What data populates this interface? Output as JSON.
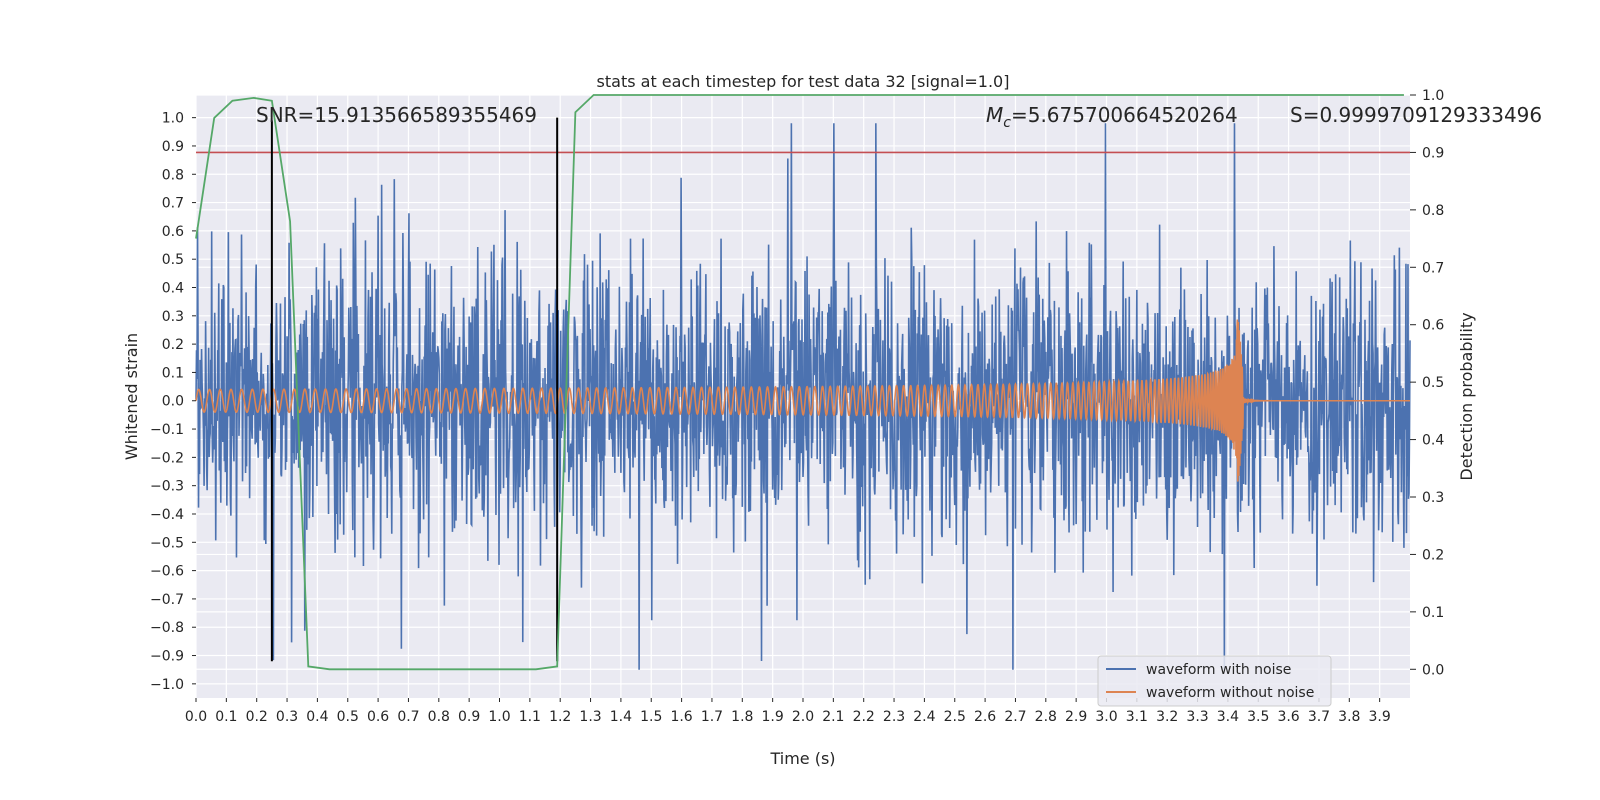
{
  "chart_data": {
    "type": "line",
    "title": "stats at each timestep for test data 32 [signal=1.0]",
    "xlabel": "Time (s)",
    "ylabel": "Whitened strain",
    "y2label": "Detection probability",
    "xlim": [
      0.0,
      4.0
    ],
    "ylim": [
      -1.05,
      1.08
    ],
    "y2lim": [
      -0.05,
      1.0
    ],
    "x_ticks": [
      "0.0",
      "0.1",
      "0.2",
      "0.3",
      "0.4",
      "0.5",
      "0.6",
      "0.7",
      "0.8",
      "0.9",
      "1.0",
      "1.1",
      "1.2",
      "1.3",
      "1.4",
      "1.5",
      "1.6",
      "1.7",
      "1.8",
      "1.9",
      "2.0",
      "2.1",
      "2.2",
      "2.3",
      "2.4",
      "2.5",
      "2.6",
      "2.7",
      "2.8",
      "2.9",
      "3.0",
      "3.1",
      "3.2",
      "3.3",
      "3.4",
      "3.5",
      "3.6",
      "3.7",
      "3.8",
      "3.9"
    ],
    "y_ticks": [
      "1.0",
      "0.9",
      "0.8",
      "0.7",
      "0.6",
      "0.5",
      "0.4",
      "0.3",
      "0.2",
      "0.1",
      "0.0",
      "−0.1",
      "−0.2",
      "−0.3",
      "−0.4",
      "−0.5",
      "−0.6",
      "−0.7",
      "−0.8",
      "−0.9",
      "−1.0"
    ],
    "y2_ticks": [
      "1.0",
      "0.9",
      "0.8",
      "0.7",
      "0.6",
      "0.5",
      "0.4",
      "0.3",
      "0.2",
      "0.1",
      "0.0"
    ],
    "annotations": {
      "snr": "SNR=15.913566589355469",
      "mc_symbol": "M",
      "mc_sub": "c",
      "mc_value": "=5.675700664520264",
      "s": "S=0.9999709129333496"
    },
    "threshold_line": {
      "axis": "y2",
      "value": 0.9,
      "color": "#c44e52"
    },
    "event_lines": [
      {
        "x": 0.25,
        "y_from": -0.92,
        "y_to": 0.99,
        "color": "#000000"
      },
      {
        "x": 1.19,
        "y_from": -0.92,
        "y_to": 1.0,
        "color": "#000000"
      }
    ],
    "detection_probability": {
      "name": "Detection probability",
      "color": "#55a868",
      "x": [
        0.0,
        0.06,
        0.12,
        0.19,
        0.25,
        0.31,
        0.37,
        0.44,
        0.5,
        0.56,
        0.62,
        0.69,
        0.75,
        0.81,
        0.87,
        0.94,
        1.0,
        1.06,
        1.12,
        1.19,
        1.25,
        1.31,
        1.37,
        1.44,
        1.5,
        2.0,
        2.5,
        3.0,
        3.5,
        3.98
      ],
      "values": [
        0.75,
        0.96,
        0.99,
        0.995,
        0.99,
        0.78,
        0.005,
        0.0,
        0.0,
        0.0,
        0.0,
        0.0,
        0.0,
        0.0,
        0.0,
        0.0,
        0.0,
        0.0,
        0.0,
        0.005,
        0.97,
        1.0,
        1.0,
        1.0,
        1.0,
        1.0,
        1.0,
        1.0,
        1.0,
        1.0
      ]
    },
    "series": [
      {
        "name": "waveform with noise",
        "color": "#4c72b0",
        "style": "noise",
        "amplitude_range": [
          -0.95,
          0.98
        ]
      },
      {
        "name": "waveform without noise",
        "color": "#dd8452",
        "style": "chirp",
        "start_amplitude": 0.04,
        "peak_amplitude": 0.38,
        "merger_time": 3.43,
        "start_frequency_hz": 28
      }
    ],
    "legend": {
      "position": "lower-right",
      "entries": [
        "waveform with noise",
        "waveform without noise"
      ]
    },
    "grid": true
  }
}
